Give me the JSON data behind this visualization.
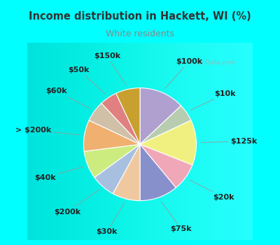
{
  "title": "Income distribution in Hackett, WI (%)",
  "subtitle": "White residents",
  "title_color": "#333333",
  "subtitle_color": "#888888",
  "bg_cyan": "#00ffff",
  "bg_chart_color": "#d8ede0",
  "watermark": "ⓘ City-Data.com",
  "labels": [
    "$100k",
    "$10k",
    "$125k",
    "$20k",
    "$75k",
    "$30k",
    "$200k",
    "$40k",
    "> $200k",
    "$60k",
    "$50k",
    "$150k"
  ],
  "values": [
    13,
    5,
    13,
    8,
    11,
    8,
    7,
    8,
    9,
    6,
    5,
    7
  ],
  "colors": [
    "#b0a0d0",
    "#b8ccb0",
    "#f0f080",
    "#f0a8b8",
    "#8890cc",
    "#f0c8a0",
    "#a8c0e0",
    "#ccec80",
    "#f0b070",
    "#d0c0a8",
    "#e08080",
    "#c8a030"
  ],
  "startangle": 90,
  "label_fontsize": 8
}
